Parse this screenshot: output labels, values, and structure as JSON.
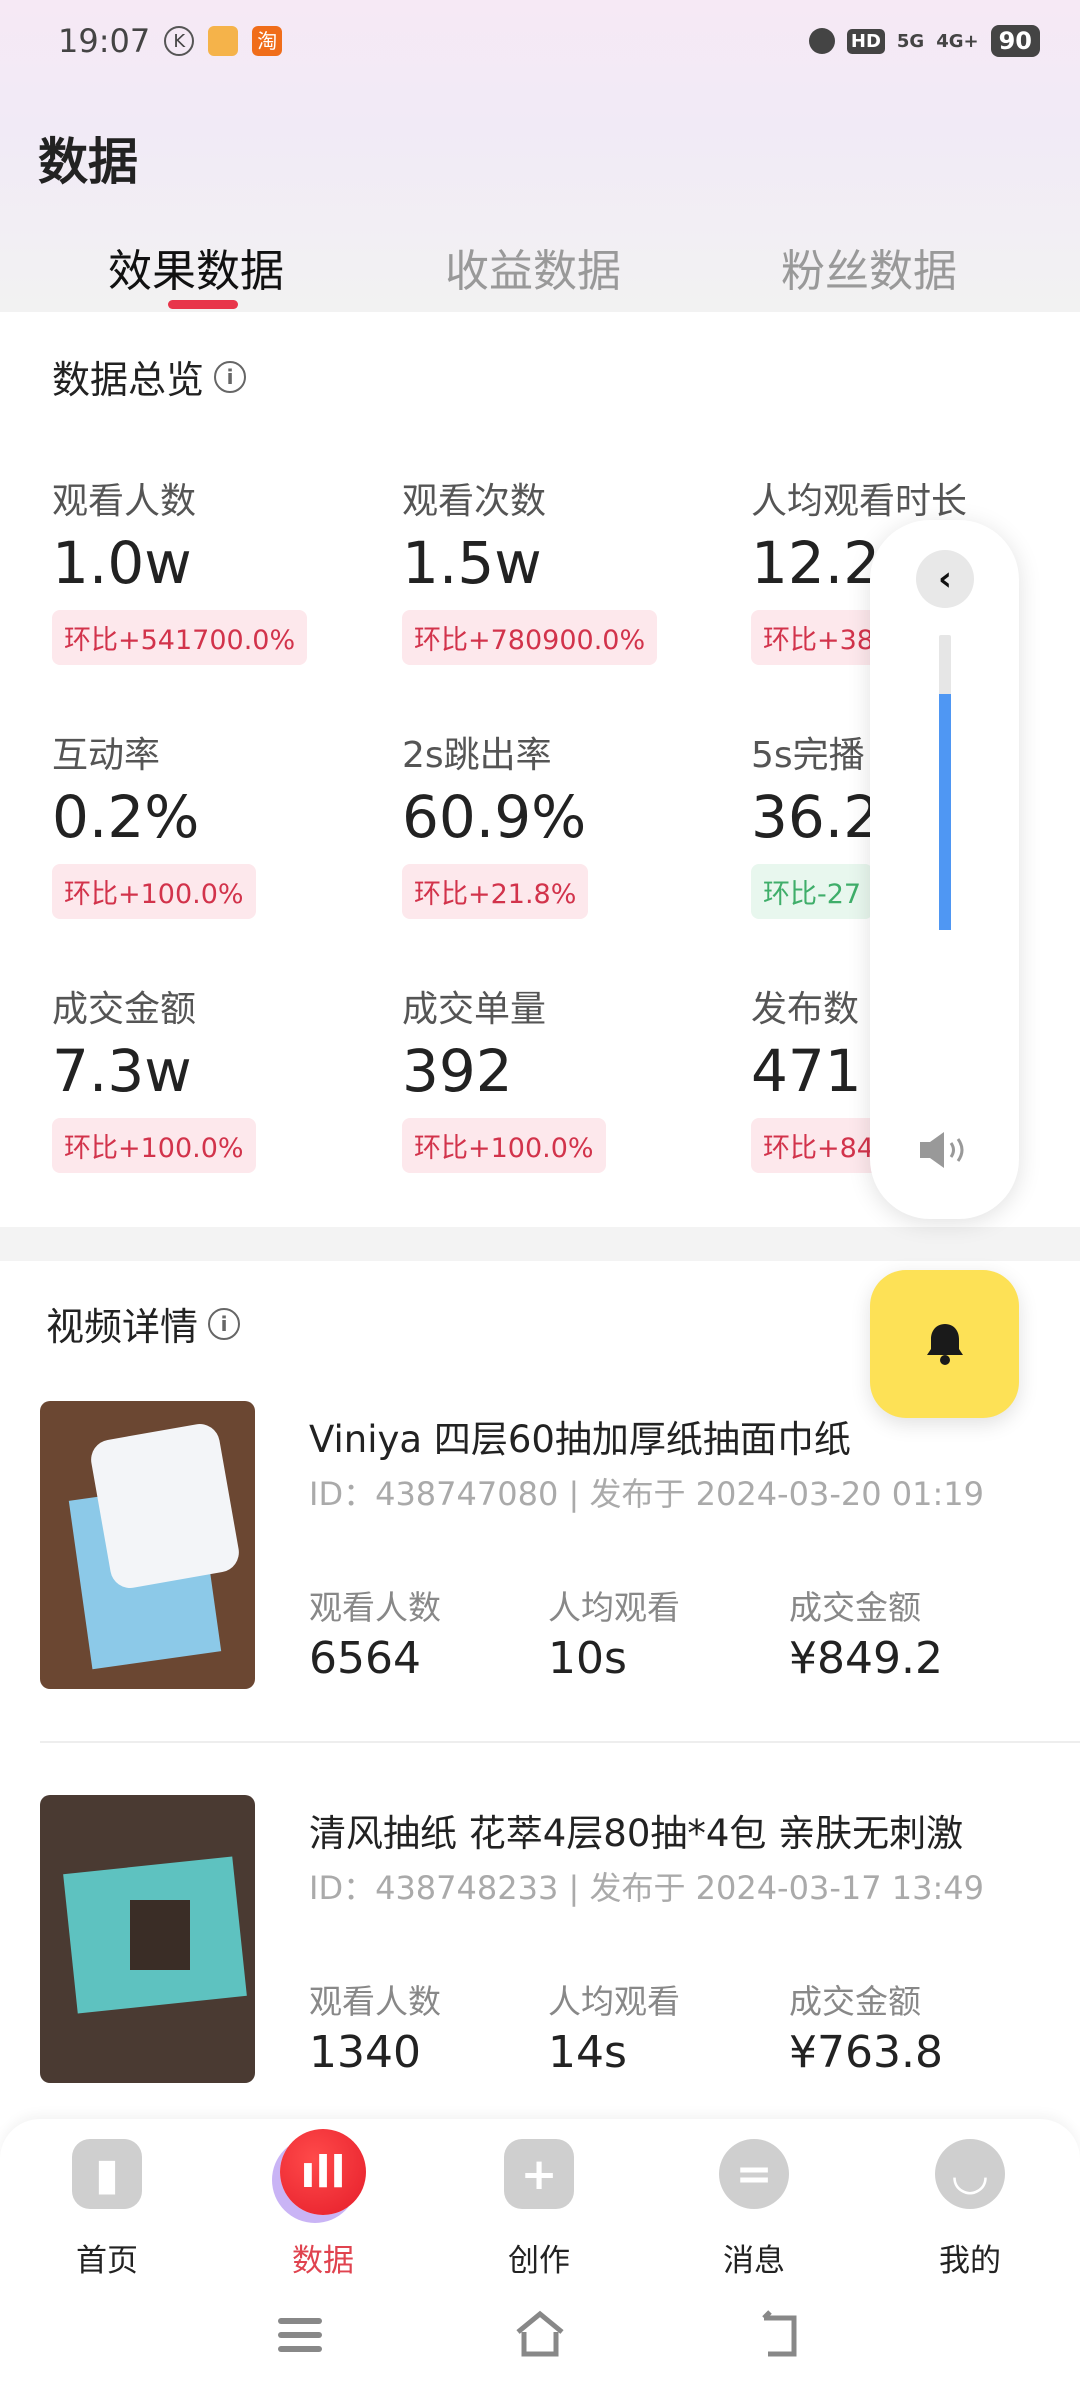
{
  "status_bar": {
    "time": "19:07",
    "k_icon": "K",
    "taobao_icon": "淘",
    "battery": "90",
    "network_5g": "5G",
    "network_4g": "4G+",
    "hd": "HD"
  },
  "header": {
    "title": "数据"
  },
  "tabs": [
    {
      "label": "效果数据",
      "active": true
    },
    {
      "label": "收益数据",
      "active": false
    },
    {
      "label": "粉丝数据",
      "active": false
    }
  ],
  "overview": {
    "title": "数据总览",
    "info_icon": "i",
    "metrics": [
      {
        "label": "观看人数",
        "value": "1.0w",
        "change": "环比+541700.0%",
        "trend": "up"
      },
      {
        "label": "观看次数",
        "value": "1.5w",
        "change": "环比+780900.0%",
        "trend": "up"
      },
      {
        "label": "人均观看时长",
        "value": "12.2s",
        "change": "环比+38",
        "trend": "up"
      },
      {
        "label": "互动率",
        "value": "0.2%",
        "change": "环比+100.0%",
        "trend": "up"
      },
      {
        "label": "2s跳出率",
        "value": "60.9%",
        "change": "环比+21.8%",
        "trend": "up"
      },
      {
        "label": "5s完播",
        "value": "36.2",
        "change": "环比-27",
        "trend": "down"
      },
      {
        "label": "成交金额",
        "value": "7.3w",
        "change": "环比+100.0%",
        "trend": "up"
      },
      {
        "label": "成交单量",
        "value": "392",
        "change": "环比+100.0%",
        "trend": "up"
      },
      {
        "label": "发布数",
        "value": "471",
        "change": "环比+84",
        "trend": "up"
      }
    ]
  },
  "videos": {
    "title": "视频详情",
    "info_icon": "i",
    "items": [
      {
        "title": "Viniya 四层60抽加厚纸抽面巾纸",
        "meta": "ID：438747080  |  发布于 2024-03-20 01:19",
        "stats": [
          {
            "label": "观看人数",
            "value": "6564"
          },
          {
            "label": "人均观看",
            "value": "10s"
          },
          {
            "label": "成交金额",
            "value": "¥849.2"
          }
        ]
      },
      {
        "title": "清风抽纸 花萃4层80抽*4包 亲肤无刺激",
        "meta": "ID：438748233  |  发布于 2024-03-17 13:49",
        "stats": [
          {
            "label": "观看人数",
            "value": "1340"
          },
          {
            "label": "人均观看",
            "value": "14s"
          },
          {
            "label": "成交金额",
            "value": "¥763.8"
          }
        ]
      }
    ]
  },
  "volume_panel": {
    "level": 0.8,
    "collapse_icon": "chevron-left",
    "speaker_icon": "speaker"
  },
  "colors": {
    "accent": "#e8354a",
    "volume": "#4f97f3",
    "bell_bg": "#fde156",
    "badge_up": "#d2334b",
    "badge_down": "#3fae6a"
  },
  "bottom_nav": [
    {
      "label": "首页",
      "icon": "home"
    },
    {
      "label": "数据",
      "icon": "chart",
      "active": true
    },
    {
      "label": "创作",
      "icon": "plus"
    },
    {
      "label": "消息",
      "icon": "message"
    },
    {
      "label": "我的",
      "icon": "profile"
    }
  ]
}
